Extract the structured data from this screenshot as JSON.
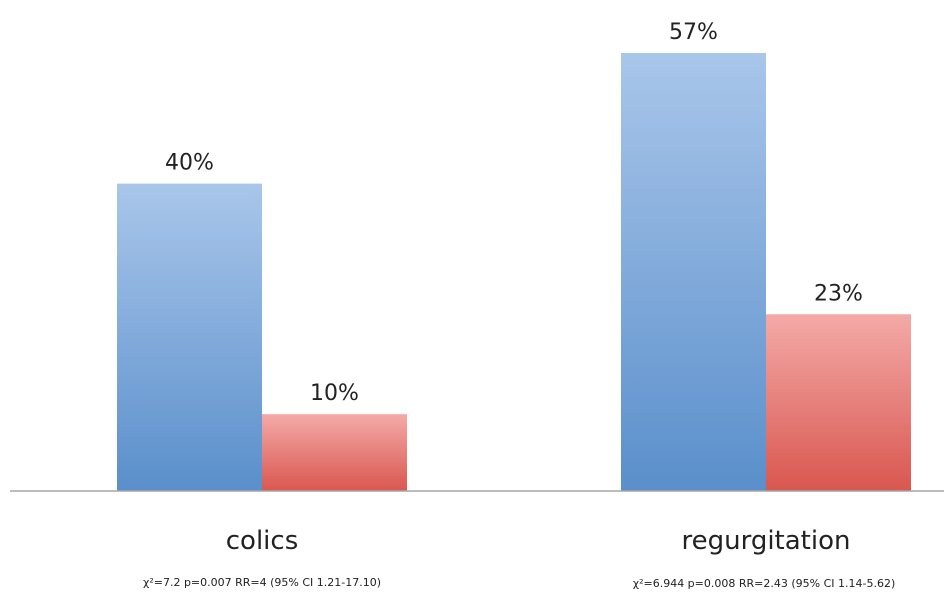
{
  "chart_data": {
    "type": "bar",
    "categories": [
      "colics",
      "regurgitation"
    ],
    "category_stats": [
      "χ²=7.2 p=0.007 RR=4 (95% CI 1.21-17.10)",
      "χ²=6.944 p=0.008 RR=2.43 (95% CI 1.14-5.62)"
    ],
    "series": [
      {
        "values": [
          40,
          57
        ],
        "labels": [
          "40%",
          "57%"
        ],
        "color_top": "#a9c6ea",
        "color_bottom": "#5a8fcb"
      },
      {
        "values": [
          10,
          23
        ],
        "labels": [
          "10%",
          "23%"
        ],
        "color_top": "#f4aaa8",
        "color_bottom": "#d9574f"
      }
    ],
    "ylim": [
      0,
      57
    ],
    "grid": false,
    "legend": "none",
    "axis_color": "#a6a6a6"
  }
}
